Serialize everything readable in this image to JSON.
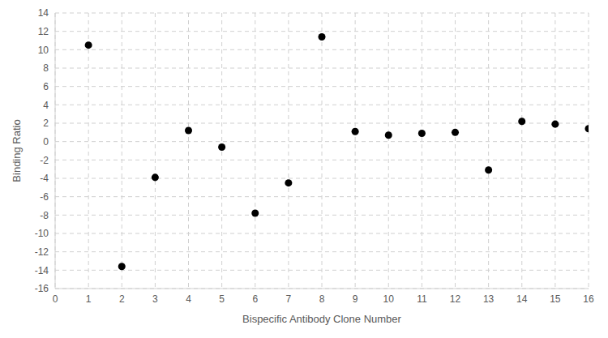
{
  "chart_data": {
    "type": "scatter",
    "x_label": "Bispecific Antibody Clone Number",
    "y_label": "Binding Ratio",
    "x": [
      1,
      2,
      3,
      4,
      5,
      6,
      7,
      8,
      9,
      10,
      11,
      12,
      13,
      14,
      15,
      16
    ],
    "values": [
      10.5,
      -13.6,
      -3.9,
      1.2,
      -0.6,
      -7.8,
      -4.5,
      11.4,
      1.1,
      0.7,
      0.9,
      1.0,
      -3.1,
      2.2,
      1.9,
      1.4
    ],
    "color": "#000000",
    "marker": "circle",
    "xlim": [
      0,
      16
    ],
    "xticks": [
      0,
      1,
      2,
      3,
      4,
      5,
      6,
      7,
      8,
      9,
      10,
      11,
      12,
      13,
      14,
      15,
      16
    ],
    "ylim": [
      -16,
      14
    ],
    "yticks": [
      -16,
      -14,
      -12,
      -10,
      -8,
      -6,
      -4,
      -2,
      0,
      2,
      4,
      6,
      8,
      10,
      12,
      14
    ],
    "grid": true
  }
}
